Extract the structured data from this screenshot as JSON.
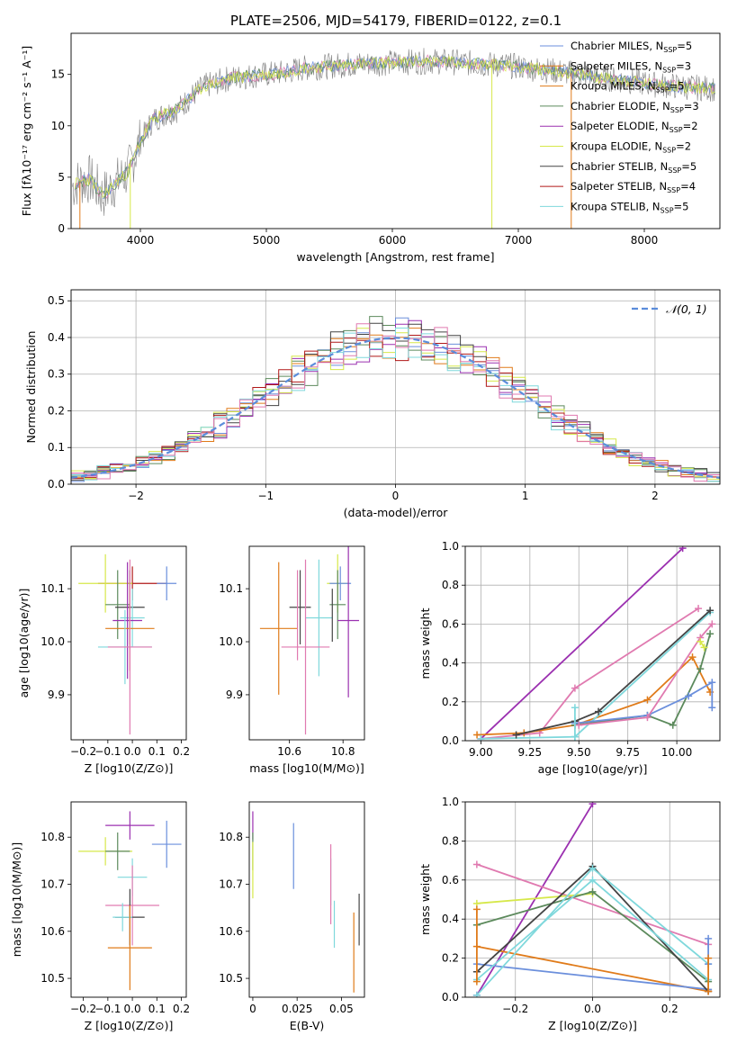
{
  "title": "PLATE=2506, MJD=54179, FIBERID=0122, z=0.1",
  "colors": [
    "#6b8fdc",
    "#e07b1a",
    "#5c8a5c",
    "#9b30b0",
    "#d6e84a",
    "#444444",
    "#b01818",
    "#7fd8dc",
    "#e07ab0"
  ],
  "panels": {
    "spectrum": {
      "type": "line",
      "xlabel": "wavelength [Angstrom, rest frame]",
      "ylabel": "Flux [fλ10⁻¹⁷ erg cm⁻² s⁻¹ A⁻¹]",
      "xlim": [
        3450,
        8600
      ],
      "ylim": [
        0,
        19
      ],
      "xticks": [
        4000,
        5000,
        6000,
        7000,
        8000
      ],
      "yticks": [
        0,
        5,
        10,
        15
      ],
      "data_color": "#808080",
      "continuum": {
        "x": [
          3450,
          3500,
          3600,
          3700,
          3800,
          3900,
          4000,
          4100,
          4200,
          4300,
          4400,
          4500,
          4700,
          4900,
          5100,
          5300,
          5500,
          5700,
          5900,
          6100,
          6300,
          6500,
          6700,
          6900,
          7100,
          7300,
          7500,
          7700,
          7900,
          8100,
          8300,
          8560
        ],
        "y": [
          4.0,
          4.5,
          4.8,
          3.2,
          4.4,
          5.5,
          8.5,
          10.6,
          11.2,
          11.6,
          12.8,
          13.8,
          14.6,
          14.9,
          15.1,
          15.6,
          15.8,
          16.0,
          16.1,
          16.2,
          16.3,
          16.2,
          16.0,
          15.9,
          15.6,
          15.3,
          15.0,
          14.6,
          14.3,
          14.0,
          13.8,
          13.6
        ]
      },
      "legend": [
        "Chabrier MILES, N_SSP=5",
        "Salpeter MILES, N_SSP=3",
        "Kroupa MILES, N_SSP=5",
        "Chabrier ELODIE, N_SSP=3",
        "Salpeter ELODIE, N_SSP=2",
        "Kroupa ELODIE, N_SSP=2",
        "Chabrier STELIB, N_SSP=5",
        "Salpeter STELIB, N_SSP=4",
        "Kroupa STELIB, N_SSP=5"
      ],
      "legend_colors": [
        "#6b8fdc",
        "#e07b1a",
        "#e07b1a",
        "#5c8a5c",
        "#9b30b0",
        "#d6e84a",
        "#444444",
        "#b01818",
        "#7fd8dc"
      ],
      "legend_placement": "top-right"
    },
    "residuals": {
      "type": "histogram",
      "xlabel": "(data-model)/error",
      "ylabel": "Normed distribution",
      "xlim": [
        -2.5,
        2.5
      ],
      "ylim": [
        0,
        0.53
      ],
      "xticks": [
        -2,
        -1,
        0,
        1,
        2
      ],
      "yticks": [
        0.0,
        0.1,
        0.2,
        0.3,
        0.4,
        0.5
      ],
      "bin_width": 0.1,
      "legend": "𝒩(0, 1)",
      "legend_placement": "top-right",
      "grid": true
    },
    "age_vs_Z": {
      "type": "errorbar",
      "xlabel": "Z [log10(Z/Z⊙)]",
      "ylabel": "age  [log10(age/yr)]",
      "xlim": [
        -0.25,
        0.22
      ],
      "ylim": [
        9.815,
        10.18
      ],
      "xticks": [
        -0.2,
        -0.1,
        0.0,
        0.1,
        0.2
      ],
      "yticks": [
        9.9,
        10.0,
        10.1
      ],
      "points": [
        {
          "x": 0.0,
          "y": 10.11,
          "xerr": 0.14,
          "yerr": 0.032,
          "c": 6
        },
        {
          "x": -0.11,
          "y": 10.11,
          "xerr": 0.11,
          "yerr": 0.055,
          "c": 4
        },
        {
          "x": 0.14,
          "y": 10.11,
          "xerr": 0.04,
          "yerr": 0.032,
          "c": 0
        },
        {
          "x": -0.06,
          "y": 10.07,
          "xerr": 0.05,
          "yerr": 0.065,
          "c": 2
        },
        {
          "x": -0.01,
          "y": 10.065,
          "xerr": 0.06,
          "yerr": 0.07,
          "c": 5
        },
        {
          "x": 0.0,
          "y": 10.045,
          "xerr": 0.05,
          "yerr": 0.055,
          "c": 7
        },
        {
          "x": -0.02,
          "y": 10.04,
          "xerr": 0.06,
          "yerr": 0.11,
          "c": 3
        },
        {
          "x": -0.01,
          "y": 10.025,
          "xerr": 0.1,
          "yerr": 0.08,
          "c": 1
        },
        {
          "x": -0.03,
          "y": 9.99,
          "xerr": 0.11,
          "yerr": 0.07,
          "c": 7
        },
        {
          "x": -0.01,
          "y": 9.99,
          "xerr": 0.09,
          "yerr": 0.165,
          "c": 8
        }
      ]
    },
    "age_vs_mass": {
      "type": "errorbar",
      "xlabel": "mass [log10(M/M⊙)]",
      "ylabel": "",
      "xlim": [
        10.45,
        10.88
      ],
      "ylim": [
        9.815,
        10.18
      ],
      "xticks": [
        10.6,
        10.8
      ],
      "yticks": [
        9.9,
        10.0,
        10.1
      ],
      "points": [
        {
          "x": 10.78,
          "y": 10.11,
          "xerr": 0.04,
          "yerr": 0.055,
          "c": 4
        },
        {
          "x": 10.79,
          "y": 10.11,
          "xerr": 0.04,
          "yerr": 0.032,
          "c": 0
        },
        {
          "x": 10.78,
          "y": 10.07,
          "xerr": 0.03,
          "yerr": 0.065,
          "c": 2
        },
        {
          "x": 10.64,
          "y": 10.065,
          "xerr": 0.04,
          "yerr": 0.07,
          "c": 5
        },
        {
          "x": 10.71,
          "y": 10.045,
          "xerr": 0.05,
          "yerr": 0.11,
          "c": 7
        },
        {
          "x": 10.82,
          "y": 10.04,
          "xerr": 0.04,
          "yerr": 0.145,
          "c": 3
        },
        {
          "x": 10.56,
          "y": 10.025,
          "xerr": 0.07,
          "yerr": 0.125,
          "c": 1
        },
        {
          "x": 10.63,
          "y": 10.05,
          "xerr": 0.0,
          "yerr": 0.085,
          "c": 8
        },
        {
          "x": 10.66,
          "y": 9.99,
          "xerr": 0.09,
          "yerr": 0.165,
          "c": 8
        },
        {
          "x": 10.76,
          "y": 10.05,
          "xerr": 0.0,
          "yerr": 0.05,
          "c": 5
        }
      ]
    },
    "weight_vs_age": {
      "type": "line",
      "xlabel": "age  [log10(age/yr)]",
      "ylabel": "mass weight",
      "xlim": [
        8.92,
        10.22
      ],
      "ylim": [
        0,
        1.0
      ],
      "xticks": [
        9.0,
        9.25,
        9.5,
        9.75,
        10.0
      ],
      "yticks": [
        0.0,
        0.2,
        0.4,
        0.6,
        0.8,
        1.0
      ],
      "grid": true,
      "series": [
        {
          "c": 3,
          "x": [
            9.0,
            10.03
          ],
          "y": [
            0.01,
            0.99
          ]
        },
        {
          "c": 8,
          "x": [
            9.0,
            9.3,
            9.48,
            10.11
          ],
          "y": [
            0.01,
            0.04,
            0.27,
            0.68
          ]
        },
        {
          "c": 1,
          "x": [
            8.98,
            9.22,
            9.48,
            9.85,
            10.08,
            10.17
          ],
          "y": [
            0.03,
            0.04,
            0.08,
            0.21,
            0.43,
            0.25
          ]
        },
        {
          "c": 7,
          "x": [
            9.0,
            9.48,
            10.17
          ],
          "y": [
            0.01,
            0.02,
            0.66
          ]
        },
        {
          "c": 5,
          "x": [
            9.18,
            9.48,
            9.6,
            10.17
          ],
          "y": [
            0.03,
            0.1,
            0.15,
            0.67
          ]
        },
        {
          "c": 2,
          "x": [
            9.48,
            9.85,
            9.98,
            10.12,
            10.17
          ],
          "y": [
            0.08,
            0.13,
            0.08,
            0.37,
            0.55
          ]
        },
        {
          "c": 0,
          "x": [
            9.48,
            9.85,
            10.06,
            10.18,
            10.18
          ],
          "y": [
            0.09,
            0.13,
            0.23,
            0.3,
            0.17
          ]
        },
        {
          "c": 8,
          "x": [
            9.5,
            9.85,
            10.12,
            10.18
          ],
          "y": [
            0.08,
            0.12,
            0.53,
            0.6
          ]
        },
        {
          "c": 4,
          "x": [
            10.12,
            10.14
          ],
          "y": [
            0.51,
            0.48
          ]
        },
        {
          "c": 7,
          "x": [
            9.48,
            9.48
          ],
          "y": [
            0.02,
            0.17
          ]
        }
      ]
    },
    "mass_vs_Z": {
      "type": "errorbar",
      "xlabel": "Z [log10(Z/Z⊙)]",
      "ylabel": "mass [log10(M/M⊙)]",
      "xlim": [
        -0.25,
        0.22
      ],
      "ylim": [
        10.46,
        10.875
      ],
      "xticks": [
        -0.2,
        -0.1,
        0.0,
        0.1,
        0.2
      ],
      "yticks": [
        10.5,
        10.6,
        10.7,
        10.8
      ],
      "points": [
        {
          "x": -0.01,
          "y": 10.825,
          "xerr": 0.1,
          "yerr": 0.03,
          "c": 3
        },
        {
          "x": 0.14,
          "y": 10.785,
          "xerr": 0.06,
          "yerr": 0.05,
          "c": 0
        },
        {
          "x": -0.11,
          "y": 10.77,
          "xerr": 0.11,
          "yerr": 0.03,
          "c": 4
        },
        {
          "x": -0.06,
          "y": 10.77,
          "xerr": 0.05,
          "yerr": 0.04,
          "c": 2
        },
        {
          "x": 0.0,
          "y": 10.715,
          "xerr": 0.06,
          "yerr": 0.04,
          "c": 7
        },
        {
          "x": 0.0,
          "y": 10.655,
          "xerr": 0.11,
          "yerr": 0.085,
          "c": 8
        },
        {
          "x": -0.01,
          "y": 10.63,
          "xerr": 0.06,
          "yerr": 0.06,
          "c": 5
        },
        {
          "x": -0.04,
          "y": 10.63,
          "xerr": 0.04,
          "yerr": 0.03,
          "c": 7
        },
        {
          "x": -0.01,
          "y": 10.565,
          "xerr": 0.09,
          "yerr": 0.09,
          "c": 1
        }
      ]
    },
    "mass_vs_ebv": {
      "type": "errorbar",
      "xlabel": "E(B-V)",
      "ylabel": "",
      "xlim": [
        -0.002,
        0.063
      ],
      "ylim": [
        10.46,
        10.875
      ],
      "xticks": [
        0.0,
        0.025,
        0.05
      ],
      "yticks": [
        10.5,
        10.6,
        10.7,
        10.8
      ],
      "points": [
        {
          "x": 0.0,
          "y": 10.825,
          "xerr": 0,
          "yerr": 0.03,
          "c": 3
        },
        {
          "x": 0.0,
          "y": 10.77,
          "xerr": 0,
          "yerr": 0.04,
          "c": 2
        },
        {
          "x": 0.0,
          "y": 10.73,
          "xerr": 0,
          "yerr": 0.06,
          "c": 4
        },
        {
          "x": 0.023,
          "y": 10.76,
          "xerr": 0,
          "yerr": 0.07,
          "c": 0
        },
        {
          "x": 0.044,
          "y": 10.705,
          "xerr": 0,
          "yerr": 0.05,
          "c": 7
        },
        {
          "x": 0.044,
          "y": 10.7,
          "xerr": 0,
          "yerr": 0.085,
          "c": 8
        },
        {
          "x": 0.046,
          "y": 10.615,
          "xerr": 0,
          "yerr": 0.05,
          "c": 7
        },
        {
          "x": 0.057,
          "y": 10.555,
          "xerr": 0,
          "yerr": 0.085,
          "c": 1
        },
        {
          "x": 0.06,
          "y": 10.625,
          "xerr": 0,
          "yerr": 0.055,
          "c": 5
        }
      ]
    },
    "weight_vs_Z": {
      "type": "line",
      "xlabel": "Z [log10(Z/Z⊙)]",
      "ylabel": "mass weight",
      "xlim": [
        -0.33,
        0.33
      ],
      "ylim": [
        0,
        1.0
      ],
      "xticks": [
        -0.2,
        0.0,
        0.2
      ],
      "yticks": [
        0.0,
        0.2,
        0.4,
        0.6,
        0.8,
        1.0
      ],
      "grid": true,
      "series": [
        {
          "c": 3,
          "x": [
            -0.3,
            0.0
          ],
          "y": [
            0.01,
            0.99
          ]
        },
        {
          "c": 8,
          "x": [
            -0.3,
            0.3
          ],
          "y": [
            0.68,
            0.27
          ]
        },
        {
          "c": 4,
          "x": [
            -0.3,
            0.0
          ],
          "y": [
            0.48,
            0.53
          ]
        },
        {
          "c": 2,
          "x": [
            -0.3,
            0.0,
            0.3
          ],
          "y": [
            0.37,
            0.54,
            0.08
          ]
        },
        {
          "c": 1,
          "x": [
            -0.3,
            0.3
          ],
          "y": [
            0.26,
            0.03
          ]
        },
        {
          "c": 0,
          "x": [
            -0.3,
            0.3
          ],
          "y": [
            0.17,
            0.04
          ]
        },
        {
          "c": 5,
          "x": [
            -0.3,
            0.0,
            0.3
          ],
          "y": [
            0.13,
            0.67,
            0.03
          ]
        },
        {
          "c": 7,
          "x": [
            -0.3,
            0.0,
            0.3
          ],
          "y": [
            0.01,
            0.66,
            0.17
          ]
        },
        {
          "c": 7,
          "x": [
            -0.3,
            0.0,
            0.3
          ],
          "y": [
            0.09,
            0.6,
            0.09
          ]
        },
        {
          "c": 1,
          "x": [
            -0.3,
            -0.3
          ],
          "y": [
            0.08,
            0.45
          ]
        },
        {
          "c": 0,
          "x": [
            0.3,
            0.3
          ],
          "y": [
            0.17,
            0.3
          ]
        },
        {
          "c": 1,
          "x": [
            0.3,
            0.3
          ],
          "y": [
            0.03,
            0.2
          ]
        }
      ]
    }
  }
}
